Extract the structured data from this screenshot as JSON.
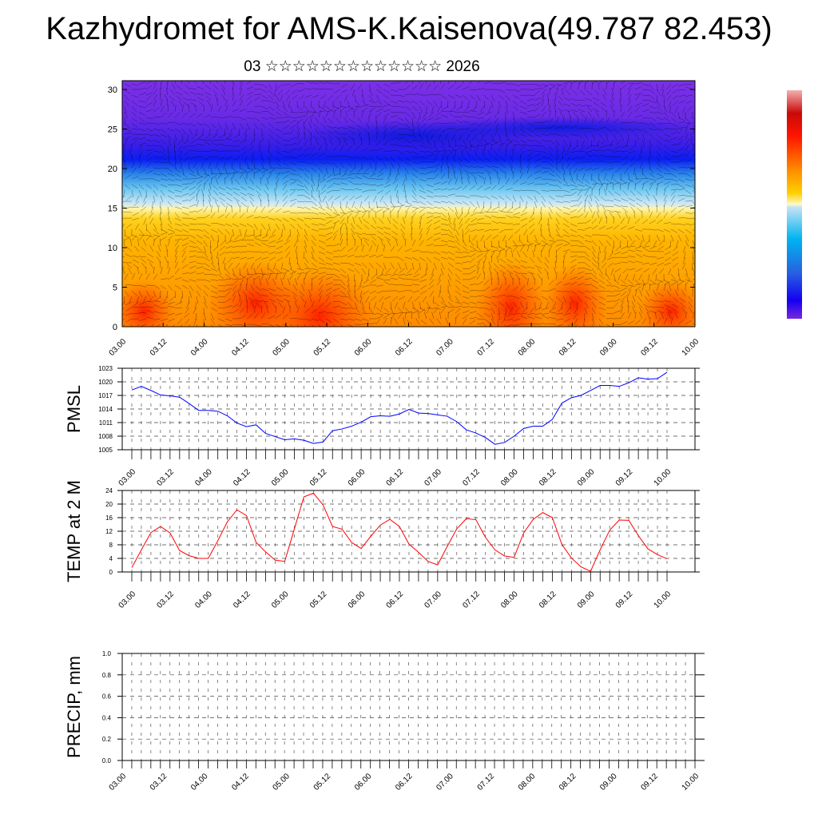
{
  "title": "Kazhydromet for AMS-K.Kaisenova(49.787 82.453)",
  "subtitle": "03 ☆☆☆☆☆☆☆☆☆☆☆☆☆ 2026",
  "colors": {
    "pmsl_line": "#0000ff",
    "temp_line": "#ff0000"
  },
  "chart_data": [
    {
      "type": "heatmap",
      "name": "vertical cross-section (temperature shading + wind streamlines)",
      "x_tick_labels": [
        "03.00",
        "03.12",
        "04.00",
        "04.12",
        "05.00",
        "05.12",
        "06.00",
        "06.12",
        "07.00",
        "07.12",
        "08.00",
        "08.12",
        "09.00",
        "09.12",
        "10.00"
      ],
      "y_tick_labels": [
        "0",
        "5",
        "10",
        "15",
        "20",
        "25",
        "30"
      ],
      "ylim": [
        0,
        31
      ],
      "colorbar": "pink-red-orange-yellow-lightblue-blue-purple (no labels)"
    },
    {
      "type": "line",
      "ylabel": "PMSL",
      "ylim": [
        1005,
        1023
      ],
      "y_tick_labels": [
        "1005",
        "1008",
        "1011",
        "1014",
        "1017",
        "1020",
        "1023"
      ],
      "x_tick_labels": [
        "03.00",
        "03.12",
        "04.00",
        "04.12",
        "05.00",
        "05.12",
        "06.00",
        "06.12",
        "07.00",
        "07.12",
        "08.00",
        "08.12",
        "09.00",
        "09.12",
        "10.00"
      ],
      "x_step_hours": 3,
      "values": [
        1018.2,
        1019.0,
        1018.1,
        1017.1,
        1016.9,
        1016.6,
        1015.2,
        1013.7,
        1013.7,
        1013.5,
        1012.5,
        1010.9,
        1010.1,
        1010.5,
        1008.6,
        1007.9,
        1007.2,
        1007.4,
        1007.1,
        1006.4,
        1006.7,
        1009.2,
        1009.6,
        1010.2,
        1011.1,
        1012.3,
        1012.5,
        1012.4,
        1012.9,
        1013.9,
        1013.1,
        1013.0,
        1012.7,
        1012.4,
        1011.2,
        1009.4,
        1008.7,
        1007.7,
        1006.2,
        1006.6,
        1008.0,
        1009.7,
        1010.2,
        1010.2,
        1011.7,
        1015.3,
        1016.5,
        1017.0,
        1018.1,
        1019.2,
        1019.2,
        1019.0,
        1019.8,
        1020.9,
        1020.6,
        1020.7,
        1022.1
      ]
    },
    {
      "type": "line",
      "ylabel": "TEMP at 2 M",
      "ylim": [
        0,
        24
      ],
      "y_tick_labels": [
        "0",
        "4",
        "8",
        "12",
        "16",
        "20",
        "24"
      ],
      "x_tick_labels": [
        "03.00",
        "03.12",
        "04.00",
        "04.12",
        "05.00",
        "05.12",
        "06.00",
        "06.12",
        "07.00",
        "07.12",
        "08.00",
        "08.12",
        "09.00",
        "09.12",
        "10.00"
      ],
      "x_step_hours": 3,
      "values": [
        1.3,
        6.5,
        11.6,
        13.4,
        11.5,
        6.3,
        4.8,
        4.0,
        4.0,
        9.2,
        14.8,
        18.3,
        16.6,
        8.7,
        5.9,
        3.5,
        3.1,
        12.6,
        22.1,
        23.2,
        19.8,
        13.4,
        12.6,
        8.7,
        6.9,
        10.5,
        13.8,
        15.5,
        13.4,
        8.2,
        5.8,
        3.1,
        2.1,
        7.5,
        12.7,
        15.7,
        15.4,
        10.2,
        6.5,
        4.7,
        4.3,
        11.5,
        15.5,
        17.5,
        16.0,
        8.1,
        4.1,
        1.5,
        0.2,
        6.5,
        12.3,
        15.3,
        15.2,
        10.7,
        6.8,
        5.1,
        3.9
      ]
    },
    {
      "type": "bar",
      "ylabel": "PRECIP, mm",
      "ylim": [
        0,
        1
      ],
      "y_tick_labels": [
        "0.0",
        "0.2",
        "0.4",
        "0.6",
        "0.8",
        "1.0"
      ],
      "x_tick_labels": [
        "03.00",
        "03.12",
        "04.00",
        "04.12",
        "05.00",
        "05.12",
        "06.00",
        "06.12",
        "07.00",
        "07.12",
        "08.00",
        "08.12",
        "09.00",
        "09.12",
        "10.00"
      ],
      "values": []
    }
  ]
}
